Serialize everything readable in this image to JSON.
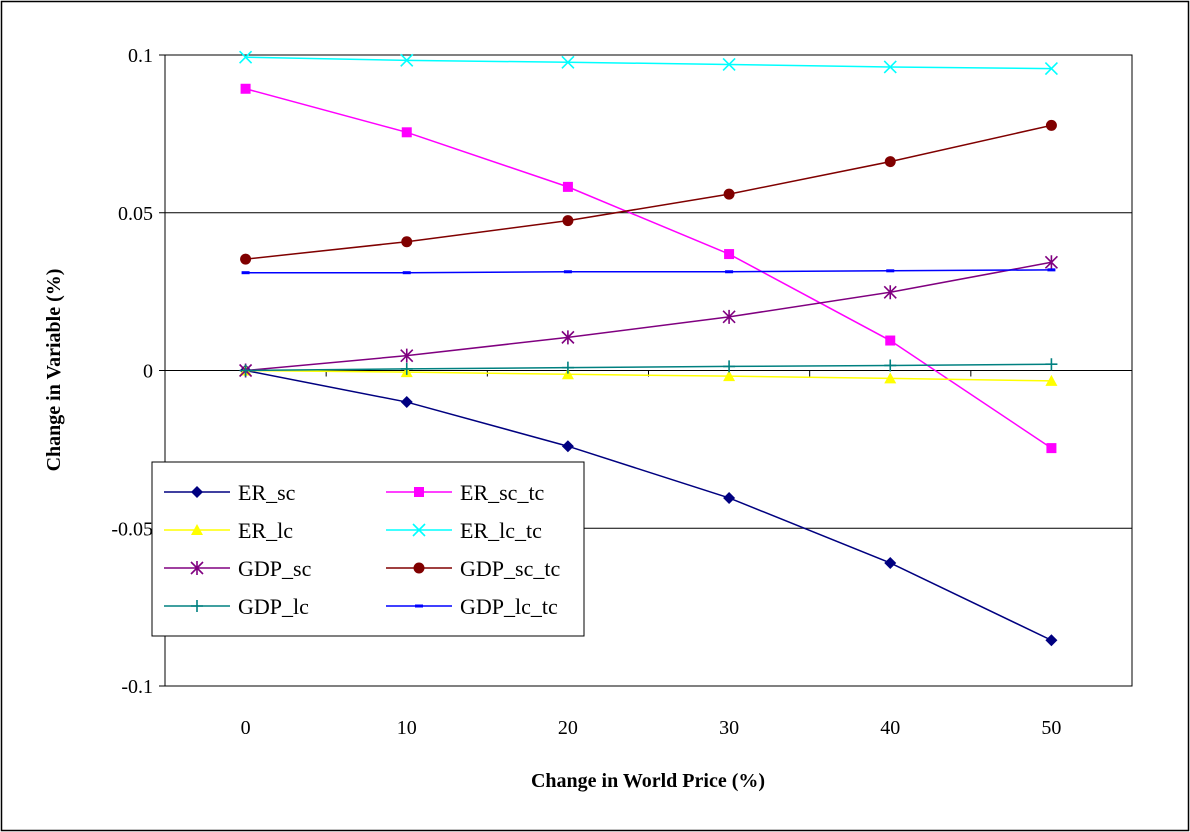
{
  "chart_data": {
    "type": "line",
    "xlabel": "Change in World Price (%)",
    "ylabel": "Change in Variable (%)",
    "x": [
      0,
      10,
      20,
      30,
      40,
      50
    ],
    "xlim": [
      -5,
      55
    ],
    "ylim": [
      -0.1,
      0.1
    ],
    "yticks": [
      {
        "value": -0.1,
        "label": "-0.1"
      },
      {
        "value": -0.05,
        "label": "-0.05"
      },
      {
        "value": 0,
        "label": "0"
      },
      {
        "value": 0.05,
        "label": "0.05"
      },
      {
        "value": 0.1,
        "label": "0.1"
      }
    ],
    "xticks": [
      {
        "value": 0,
        "label": "0"
      },
      {
        "value": 10,
        "label": "10"
      },
      {
        "value": 20,
        "label": "20"
      },
      {
        "value": 30,
        "label": "30"
      },
      {
        "value": 40,
        "label": "40"
      },
      {
        "value": 50,
        "label": "50"
      }
    ],
    "grid": "horizontal major gridlines",
    "legend_position": "bottom-left",
    "series": [
      {
        "name": "ER_sc",
        "color": "#000080",
        "marker": "diamond",
        "values": [
          0.0,
          -0.01,
          -0.024,
          -0.0404,
          -0.061,
          -0.0855
        ]
      },
      {
        "name": "ER_sc_tc",
        "color": "#ff00ff",
        "marker": "square",
        "values": [
          0.0893,
          0.0755,
          0.0582,
          0.0369,
          0.0095,
          -0.0246
        ]
      },
      {
        "name": "ER_lc",
        "color": "#ffff00",
        "marker": "triangle",
        "values": [
          0.0,
          -0.0005,
          -0.0012,
          -0.0018,
          -0.0025,
          -0.0033
        ]
      },
      {
        "name": "ER_lc_tc",
        "color": "#00ffff",
        "marker": "x",
        "values": [
          0.0993,
          0.0983,
          0.0977,
          0.097,
          0.0962,
          0.0957
        ]
      },
      {
        "name": "GDP_sc",
        "color": "#800080",
        "marker": "star",
        "values": [
          0.0,
          0.0047,
          0.0105,
          0.017,
          0.0248,
          0.0343
        ]
      },
      {
        "name": "GDP_sc_tc",
        "color": "#800000",
        "marker": "circle",
        "values": [
          0.0353,
          0.0408,
          0.0475,
          0.0559,
          0.0662,
          0.0777
        ]
      },
      {
        "name": "GDP_lc",
        "color": "#008080",
        "marker": "plus",
        "values": [
          0.0,
          0.0005,
          0.0009,
          0.0013,
          0.0016,
          0.002
        ]
      },
      {
        "name": "GDP_lc_tc",
        "color": "#0000ff",
        "marker": "dash",
        "values": [
          0.031,
          0.031,
          0.0313,
          0.0313,
          0.0316,
          0.0319
        ]
      }
    ]
  }
}
